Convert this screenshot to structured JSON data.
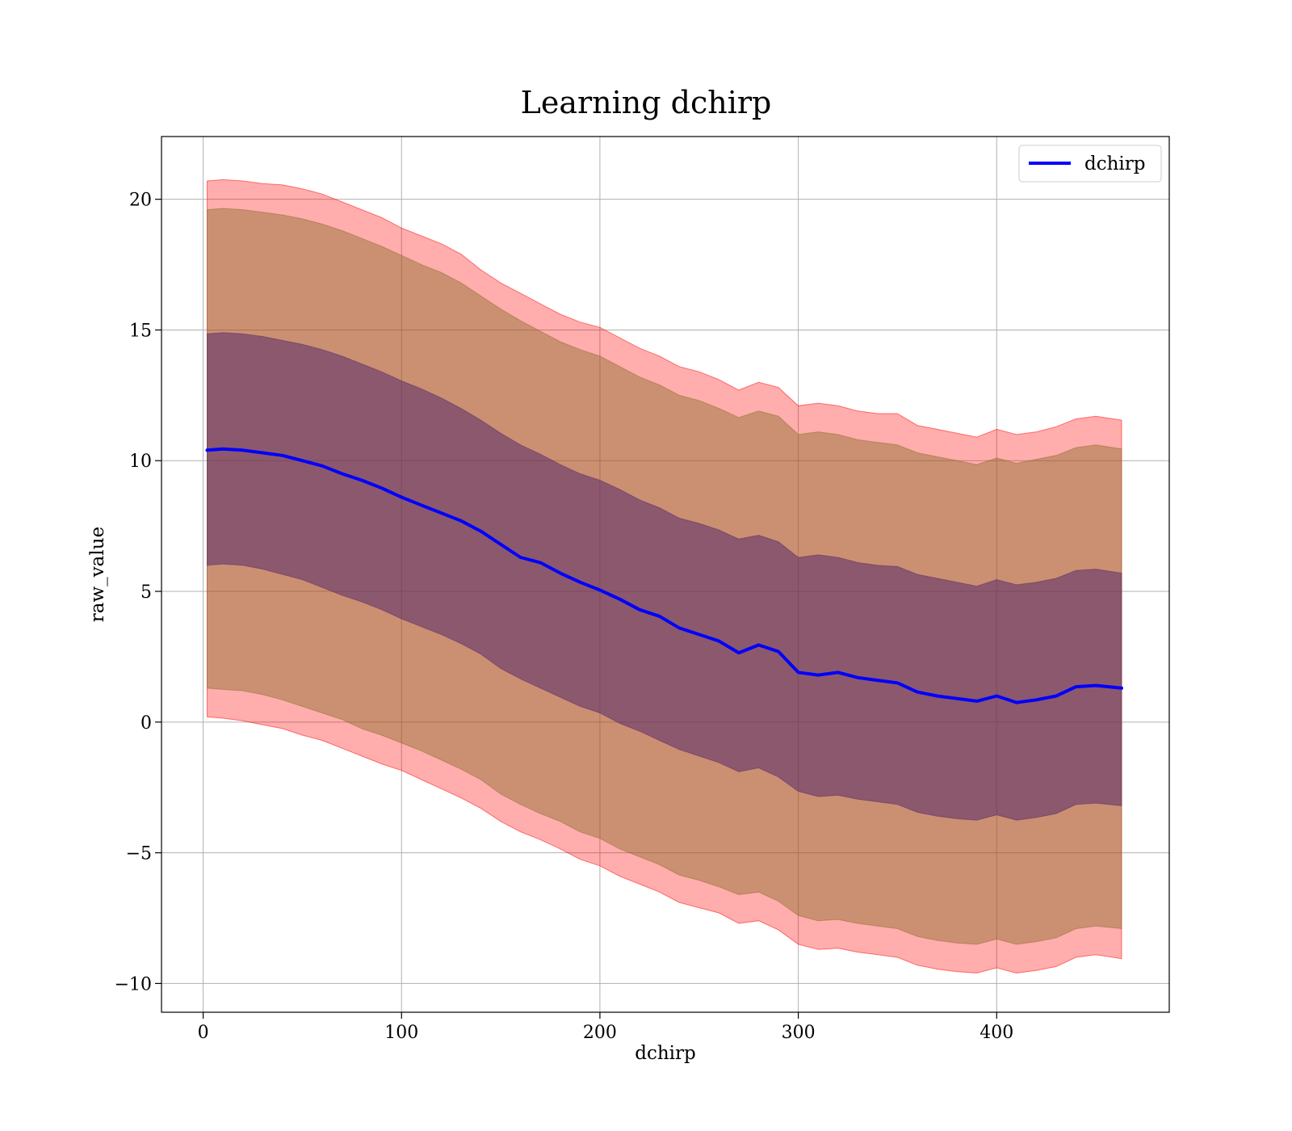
{
  "chart_data": {
    "type": "line",
    "title": "Learning dchirp",
    "xlabel": "dchirp",
    "ylabel": "raw_value",
    "xlim": [
      -21,
      487
    ],
    "ylim": [
      -11.1,
      22.4
    ],
    "xticks": [
      0,
      100,
      200,
      300,
      400
    ],
    "yticks": [
      -10,
      -5,
      0,
      5,
      10,
      15,
      20
    ],
    "grid": true,
    "legend": {
      "placement": "top-right",
      "entries": [
        "dchirp"
      ]
    },
    "colors": {
      "line": "#0000ff",
      "band_outer": "#ff0000",
      "band_middle": "#8c6c2b",
      "band_inner": "#5a2a6a",
      "grid": "#b0b0b0"
    },
    "series": [
      {
        "name": "dchirp",
        "x": [
          2,
          10,
          20,
          30,
          40,
          50,
          60,
          70,
          80,
          90,
          100,
          110,
          120,
          130,
          140,
          150,
          160,
          170,
          180,
          190,
          200,
          210,
          220,
          230,
          240,
          250,
          260,
          270,
          280,
          290,
          300,
          310,
          320,
          330,
          340,
          350,
          360,
          370,
          380,
          390,
          400,
          410,
          420,
          430,
          440,
          450,
          463
        ],
        "values": [
          10.4,
          10.45,
          10.4,
          10.3,
          10.2,
          10.0,
          9.8,
          9.5,
          9.25,
          8.95,
          8.6,
          8.3,
          8.0,
          7.7,
          7.3,
          6.8,
          6.3,
          6.1,
          5.7,
          5.35,
          5.05,
          4.7,
          4.3,
          4.05,
          3.6,
          3.35,
          3.1,
          2.65,
          2.95,
          2.7,
          1.9,
          1.8,
          1.9,
          1.7,
          1.6,
          1.5,
          1.15,
          1.0,
          0.9,
          0.8,
          1.0,
          0.75,
          0.85,
          1.0,
          1.35,
          1.4,
          1.3
        ]
      }
    ],
    "bands": [
      {
        "lower": [
          0.2,
          0.15,
          0.05,
          -0.1,
          -0.25,
          -0.5,
          -0.7,
          -1.0,
          -1.3,
          -1.6,
          -1.85,
          -2.2,
          -2.55,
          -2.9,
          -3.3,
          -3.8,
          -4.2,
          -4.5,
          -4.85,
          -5.25,
          -5.5,
          -5.9,
          -6.2,
          -6.5,
          -6.9,
          -7.1,
          -7.3,
          -7.7,
          -7.6,
          -7.95,
          -8.5,
          -8.7,
          -8.65,
          -8.8,
          -8.9,
          -9.0,
          -9.3,
          -9.45,
          -9.55,
          -9.6,
          -9.4,
          -9.6,
          -9.5,
          -9.35,
          -9.0,
          -8.9,
          -9.05
        ],
        "upper": [
          20.7,
          20.75,
          20.7,
          20.6,
          20.55,
          20.4,
          20.2,
          19.9,
          19.6,
          19.3,
          18.9,
          18.6,
          18.3,
          17.9,
          17.3,
          16.8,
          16.4,
          16.0,
          15.6,
          15.3,
          15.1,
          14.7,
          14.3,
          14.0,
          13.6,
          13.4,
          13.1,
          12.7,
          13.0,
          12.8,
          12.1,
          12.2,
          12.1,
          11.9,
          11.8,
          11.8,
          11.35,
          11.2,
          11.05,
          10.9,
          11.2,
          11.0,
          11.1,
          11.3,
          11.6,
          11.7,
          11.55
        ]
      },
      {
        "lower": [
          1.3,
          1.25,
          1.2,
          1.05,
          0.85,
          0.6,
          0.35,
          0.1,
          -0.25,
          -0.5,
          -0.8,
          -1.1,
          -1.45,
          -1.8,
          -2.2,
          -2.75,
          -3.15,
          -3.5,
          -3.8,
          -4.2,
          -4.45,
          -4.85,
          -5.15,
          -5.45,
          -5.85,
          -6.05,
          -6.3,
          -6.6,
          -6.5,
          -6.85,
          -7.4,
          -7.6,
          -7.55,
          -7.7,
          -7.8,
          -7.9,
          -8.2,
          -8.35,
          -8.45,
          -8.5,
          -8.3,
          -8.5,
          -8.4,
          -8.25,
          -7.9,
          -7.8,
          -7.9
        ],
        "upper": [
          19.6,
          19.65,
          19.6,
          19.5,
          19.4,
          19.25,
          19.05,
          18.8,
          18.5,
          18.2,
          17.85,
          17.5,
          17.2,
          16.8,
          16.3,
          15.8,
          15.35,
          14.95,
          14.55,
          14.25,
          14.0,
          13.6,
          13.2,
          12.9,
          12.5,
          12.3,
          12.0,
          11.65,
          11.9,
          11.7,
          11.0,
          11.1,
          11.0,
          10.8,
          10.7,
          10.6,
          10.3,
          10.15,
          10.0,
          9.85,
          10.1,
          9.9,
          10.05,
          10.2,
          10.5,
          10.6,
          10.45
        ]
      },
      {
        "lower": [
          6.0,
          6.05,
          6.0,
          5.85,
          5.65,
          5.45,
          5.15,
          4.85,
          4.6,
          4.3,
          3.95,
          3.65,
          3.35,
          3.0,
          2.6,
          2.05,
          1.65,
          1.3,
          0.95,
          0.6,
          0.35,
          -0.05,
          -0.35,
          -0.7,
          -1.05,
          -1.3,
          -1.55,
          -1.9,
          -1.75,
          -2.1,
          -2.65,
          -2.85,
          -2.8,
          -2.95,
          -3.05,
          -3.15,
          -3.45,
          -3.6,
          -3.7,
          -3.75,
          -3.55,
          -3.75,
          -3.65,
          -3.5,
          -3.15,
          -3.1,
          -3.2
        ],
        "upper": [
          14.85,
          14.9,
          14.85,
          14.75,
          14.6,
          14.45,
          14.25,
          14.0,
          13.7,
          13.4,
          13.05,
          12.75,
          12.4,
          12.0,
          11.55,
          11.05,
          10.6,
          10.25,
          9.85,
          9.5,
          9.25,
          8.9,
          8.5,
          8.2,
          7.8,
          7.6,
          7.35,
          7.0,
          7.15,
          6.9,
          6.3,
          6.4,
          6.3,
          6.1,
          6.0,
          5.95,
          5.65,
          5.5,
          5.35,
          5.2,
          5.45,
          5.25,
          5.35,
          5.5,
          5.8,
          5.85,
          5.7
        ]
      }
    ]
  }
}
